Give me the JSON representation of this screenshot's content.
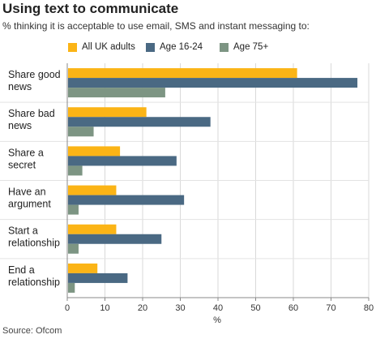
{
  "header": {
    "title": "Using text to communicate",
    "subtitle": "% thinking it is acceptable to use email, SMS and instant messaging to:"
  },
  "footer": {
    "source": "Source: Ofcom"
  },
  "colors": {
    "all_uk": "#fbb416",
    "age_16_24": "#4a6983",
    "age_75_plus": "#7d9583"
  },
  "chart_data": {
    "type": "bar",
    "orientation": "horizontal",
    "title": "Using text to communicate",
    "subtitle": "% thinking it is acceptable to use email, SMS and instant messaging to:",
    "categories": [
      [
        "Share good",
        "news"
      ],
      [
        "Share bad",
        "news"
      ],
      [
        "Share a",
        "secret"
      ],
      [
        "Have an",
        "argument"
      ],
      [
        "Start a",
        "relationship"
      ],
      [
        "End a",
        "relationship"
      ]
    ],
    "series": [
      {
        "name": "All UK adults",
        "color": "#fbb416",
        "values": [
          61,
          21,
          14,
          13,
          13,
          8
        ]
      },
      {
        "name": "Age 16-24",
        "color": "#4a6983",
        "values": [
          77,
          38,
          29,
          31,
          25,
          16
        ]
      },
      {
        "name": "Age 75+",
        "color": "#7d9583",
        "values": [
          26,
          7,
          4,
          3,
          3,
          2
        ]
      }
    ],
    "xlabel": "%",
    "xlim": [
      0,
      80
    ],
    "xticks": [
      "0",
      "10",
      "20",
      "30",
      "40",
      "50",
      "60",
      "70",
      "80"
    ],
    "grid": true,
    "legend_position": "top"
  }
}
